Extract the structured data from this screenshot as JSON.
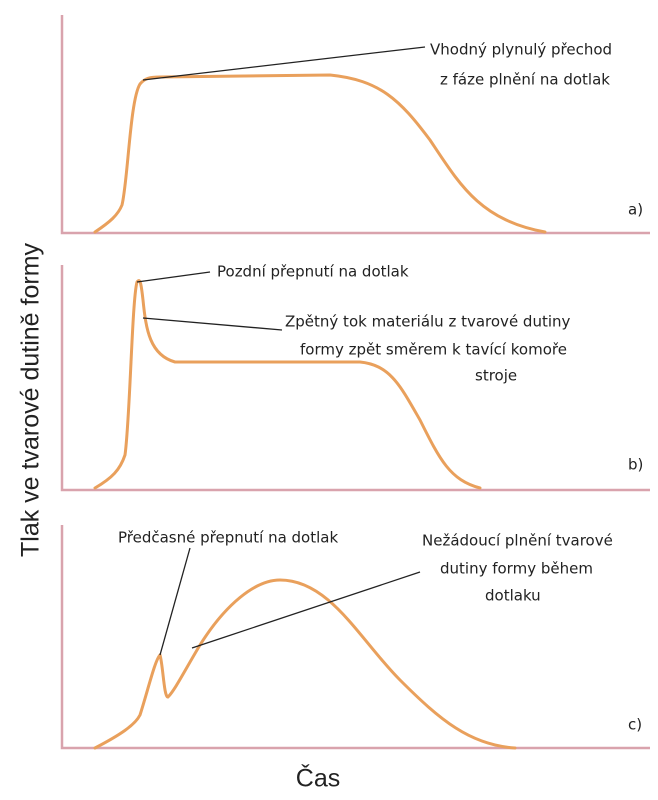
{
  "y_axis_label": "Tlak ve tvarové dutině formy",
  "x_axis_label": "Čas",
  "panels": [
    {
      "label": "a)",
      "annotations": [
        {
          "lines": [
            "Vhodný plynulý přechod",
            "z fáze plnění na dotlak"
          ]
        }
      ]
    },
    {
      "label": "b)",
      "annotations": [
        {
          "lines": [
            "Pozdní přepnutí na dotlak"
          ]
        },
        {
          "lines": [
            "Zpětný tok materiálu z tvarové dutiny",
            "formy zpět směrem k tavící komoře",
            "stroje"
          ]
        }
      ]
    },
    {
      "label": "c)",
      "annotations": [
        {
          "lines": [
            "Předčasné přepnutí na dotlak"
          ]
        },
        {
          "lines": [
            "Nežádoucí plnění tvarové",
            "dutiny formy během",
            "dotlaku"
          ]
        }
      ]
    }
  ]
}
